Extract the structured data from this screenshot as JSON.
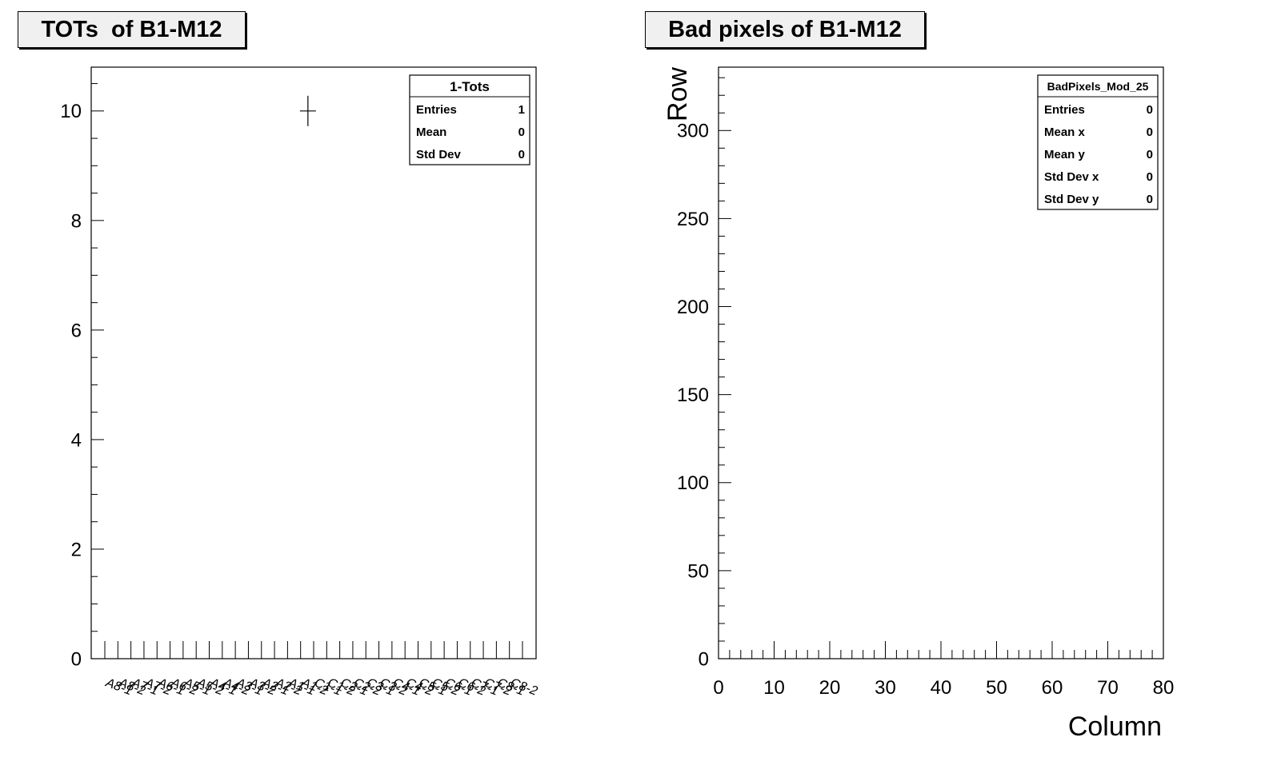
{
  "chart_data": [
    {
      "type": "line",
      "title": "TOTs  of B1-M12",
      "categories": [
        "A8-1",
        "A8-2",
        "A7-1",
        "A7-2",
        "A6-1",
        "A6-2",
        "A5-1",
        "A5-2",
        "A4-1",
        "A4-2",
        "A3-1",
        "A3-2",
        "A2-1",
        "A2-2",
        "A1-1",
        "A1-2",
        "C1-1",
        "C1-2",
        "C2-1",
        "C2-2",
        "C3-1",
        "C3-2",
        "C4-1",
        "C4-2",
        "C5-1",
        "C5-2",
        "C6-1",
        "C6-2",
        "C7-1",
        "C7-2",
        "C8-1",
        "C8-2"
      ],
      "points": [
        {
          "category": "A1-2",
          "value": 10
        }
      ],
      "ylim": [
        0,
        10.8
      ],
      "yticks": [
        "0",
        "2",
        "4",
        "6",
        "8",
        "10"
      ],
      "stats": {
        "title": "1-Tots",
        "rows": [
          {
            "label": "Entries",
            "value": "1"
          },
          {
            "label": "Mean",
            "value": "0"
          },
          {
            "label": "Std Dev",
            "value": "0"
          }
        ]
      },
      "legend_position": "top-right",
      "grid": false
    },
    {
      "type": "heatmap",
      "title": "Bad pixels of B1-M12",
      "xlabel": "Column",
      "ylabel": "Row",
      "xlim": [
        0,
        80
      ],
      "ylim": [
        0,
        336
      ],
      "xticks": [
        "0",
        "10",
        "20",
        "30",
        "40",
        "50",
        "60",
        "70",
        "80"
      ],
      "yticks": [
        "0",
        "50",
        "100",
        "150",
        "200",
        "250",
        "300"
      ],
      "values": [],
      "stats": {
        "title": "BadPixels_Mod_25",
        "rows": [
          {
            "label": "Entries",
            "value": "0"
          },
          {
            "label": "Mean x",
            "value": "0"
          },
          {
            "label": "Mean y",
            "value": "0"
          },
          {
            "label": "Std Dev x",
            "value": "0"
          },
          {
            "label": "Std Dev y",
            "value": "0"
          }
        ]
      },
      "legend_position": "top-right",
      "grid": false
    }
  ]
}
